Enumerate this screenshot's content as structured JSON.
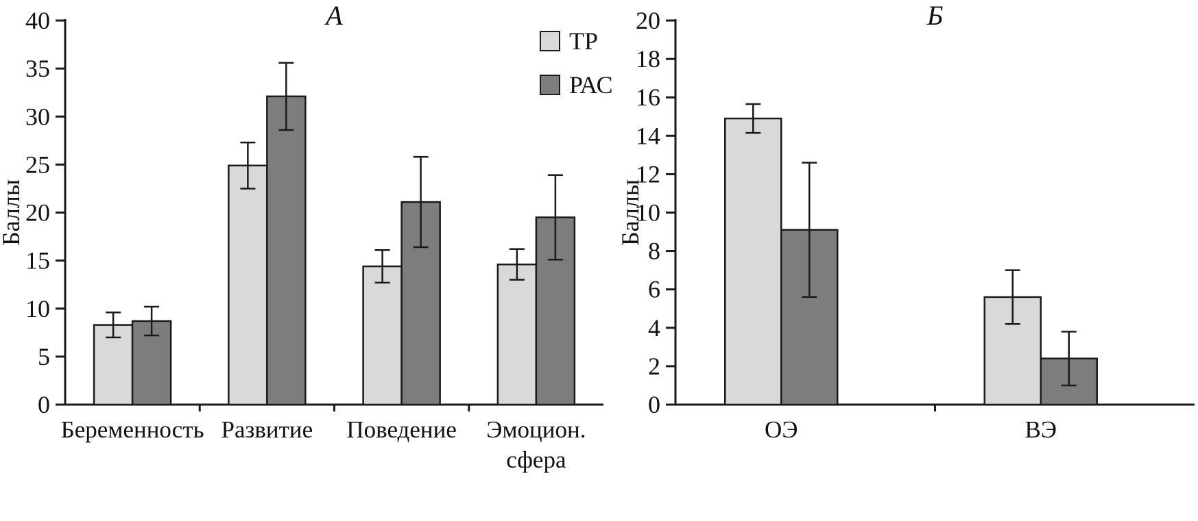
{
  "figure": {
    "background": "#ffffff",
    "description_visible_panels": [
      "А",
      "Б"
    ]
  },
  "style": {
    "axis_color": "#1a1a1a",
    "text_color": "#111111",
    "light_bar_color": "#d9d9d9",
    "dark_bar_color": "#7d7d7d"
  },
  "chart_data": [
    {
      "type": "bar",
      "panel_label": "А",
      "title": "А",
      "xlabel": "",
      "ylabel": "Баллы",
      "ylim": [
        0,
        40
      ],
      "ytick_step": 5,
      "ytick_labels": [
        "0",
        "5",
        "10",
        "15",
        "20",
        "25",
        "30",
        "35",
        "40"
      ],
      "grid": false,
      "categories": [
        "Беременность",
        "Развитие",
        "Поведение",
        "Эмоцион.\nсфера"
      ],
      "series": [
        {
          "name": "ТР",
          "color": "#d9d9d9",
          "values": [
            8.3,
            24.9,
            14.4,
            14.6
          ],
          "errors": [
            1.3,
            2.4,
            1.7,
            1.6
          ]
        },
        {
          "name": "РАС",
          "color": "#7d7d7d",
          "values": [
            8.7,
            32.1,
            21.1,
            19.5
          ],
          "errors": [
            1.5,
            3.5,
            4.7,
            4.4
          ]
        }
      ],
      "legend": {
        "show": true,
        "position": "top-right",
        "entries": [
          "ТР",
          "РАС"
        ]
      }
    },
    {
      "type": "bar",
      "panel_label": "Б",
      "title": "Б",
      "xlabel": "",
      "ylabel": "Баллы",
      "ylim": [
        0,
        20
      ],
      "ytick_step": 2,
      "ytick_labels": [
        "0",
        "2",
        "4",
        "6",
        "8",
        "10",
        "12",
        "14",
        "16",
        "18",
        "20"
      ],
      "grid": false,
      "categories": [
        "ОЭ",
        "ВЭ"
      ],
      "series": [
        {
          "name": "ТР",
          "color": "#d9d9d9",
          "values": [
            14.9,
            5.6
          ],
          "errors": [
            0.75,
            1.4
          ]
        },
        {
          "name": "РАС",
          "color": "#7d7d7d",
          "values": [
            9.1,
            2.4
          ],
          "errors": [
            3.5,
            1.4
          ]
        }
      ],
      "legend": {
        "show": false,
        "entries": []
      }
    }
  ]
}
